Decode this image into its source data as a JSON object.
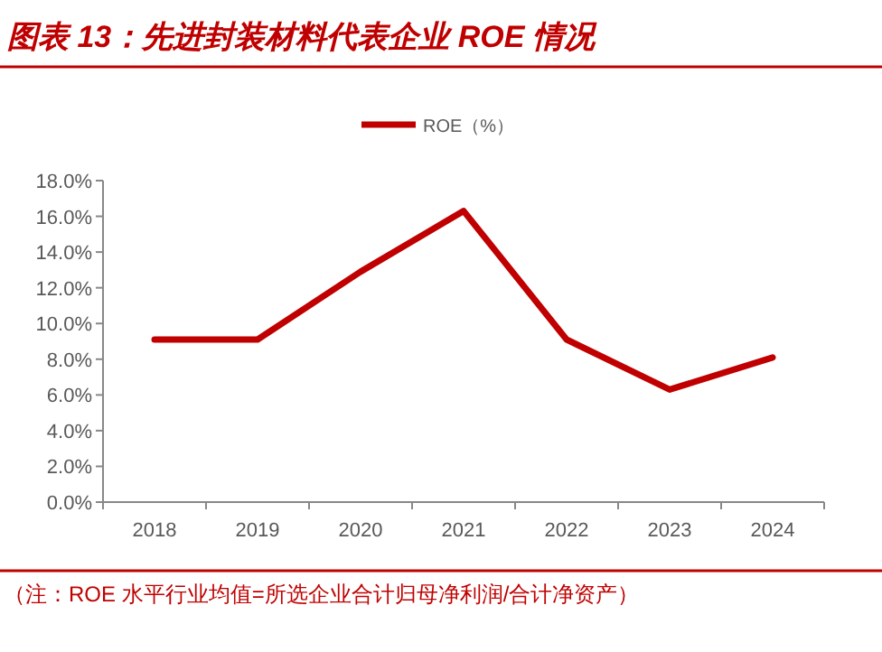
{
  "chart_data": {
    "type": "line",
    "title": "图表 13：先进封装材料代表企业 ROE 情况",
    "categories": [
      "2018",
      "2019",
      "2020",
      "2021",
      "2022",
      "2023",
      "2024"
    ],
    "series": [
      {
        "name": "ROE（%）",
        "color": "#c00000",
        "values": [
          9.1,
          9.1,
          12.9,
          16.3,
          9.1,
          6.3,
          8.1
        ]
      }
    ],
    "ylim": [
      0,
      18
    ],
    "yticks": [
      {
        "value": 0,
        "label": "0.0%"
      },
      {
        "value": 2,
        "label": "2.0%"
      },
      {
        "value": 4,
        "label": "4.0%"
      },
      {
        "value": 6,
        "label": "6.0%"
      },
      {
        "value": 8,
        "label": "8.0%"
      },
      {
        "value": 10,
        "label": "10.0%"
      },
      {
        "value": 12,
        "label": "12.0%"
      },
      {
        "value": 14,
        "label": "14.0%"
      },
      {
        "value": 16,
        "label": "16.0%"
      },
      {
        "value": 18,
        "label": "18.0%"
      }
    ],
    "grid": false,
    "legend": "top",
    "marker": "none",
    "line_style": "solid",
    "annotations": [
      "（注：ROE 水平行业均值=所选企业合计归母净利润/合计净资产）"
    ]
  }
}
